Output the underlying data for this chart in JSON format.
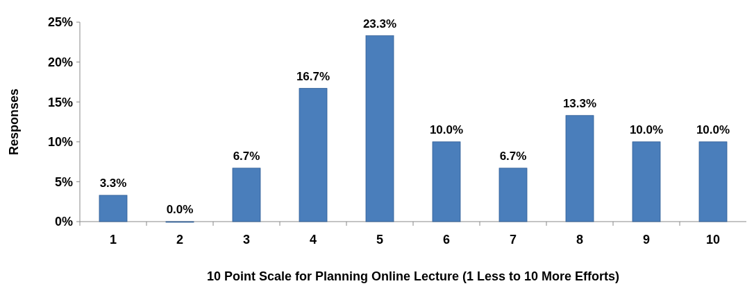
{
  "chart_data": {
    "type": "bar",
    "xlabel": "10 Point Scale for Planning Online Lecture (1 Less to 10 More Efforts)",
    "ylabel": "Responses",
    "categories": [
      "1",
      "2",
      "3",
      "4",
      "5",
      "6",
      "7",
      "8",
      "9",
      "10"
    ],
    "values": [
      3.3,
      0.0,
      6.7,
      16.7,
      23.3,
      10.0,
      6.7,
      13.3,
      10.0,
      10.0
    ],
    "value_labels": [
      "3.3%",
      "0.0%",
      "6.7%",
      "16.7%",
      "23.3%",
      "10.0%",
      "6.7%",
      "13.3%",
      "10.0%",
      "10.0%"
    ],
    "color": "#4a7ebb",
    "ylim": [
      0,
      25
    ],
    "yticks": [
      {
        "value": 0,
        "label": "0%"
      },
      {
        "value": 5,
        "label": "5%"
      },
      {
        "value": 10,
        "label": "10%"
      },
      {
        "value": 15,
        "label": "15%"
      },
      {
        "value": 20,
        "label": "20%"
      },
      {
        "value": 25,
        "label": "25%"
      }
    ],
    "grid": false
  }
}
